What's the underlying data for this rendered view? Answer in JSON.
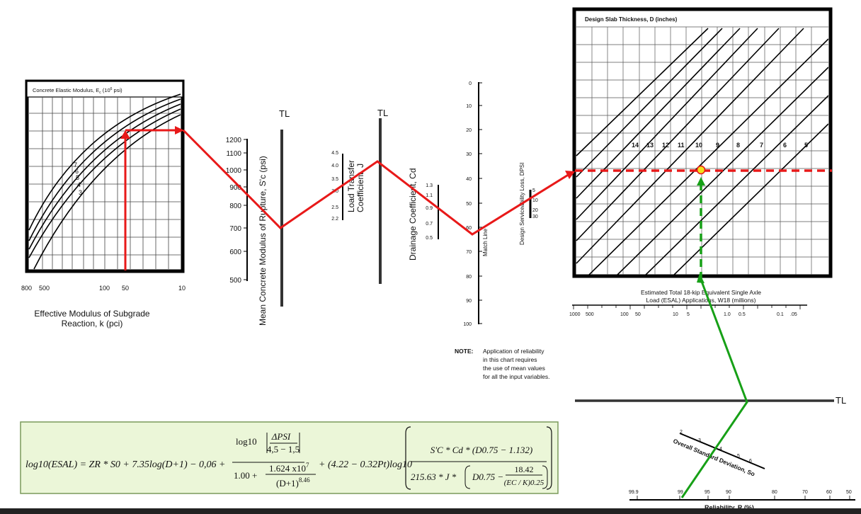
{
  "left_chart": {
    "title": "Concrete Elastic Modulus, E",
    "title_sub": "c",
    "title_paren": " (10",
    "title_sup": "6",
    "title_unit": " psi)",
    "curve_labels": [
      "7",
      "6",
      "5",
      "4",
      "3"
    ],
    "x_ticks": [
      "800",
      "500",
      "100",
      "50",
      "10"
    ],
    "x_label_line1": "Effective Modulus of Subgrade",
    "x_label_line2": "Reaction, k (pci)"
  },
  "rupture_scale": {
    "ticks": [
      "1200",
      "1100",
      "1000",
      "900",
      "800",
      "700",
      "600",
      "500"
    ],
    "label": "Mean Concrete Modulus of Rupture, S'c (psi)"
  },
  "tl_labels": [
    "TL",
    "TL",
    "TL"
  ],
  "load_transfer": {
    "ticks": [
      "4.5",
      "4.0",
      "3.5",
      "3.0",
      "2.5",
      "2.2"
    ],
    "label_line1": "Load Transfer",
    "label_line2": "Coefficient, J"
  },
  "drainage": {
    "ticks": [
      "1.3",
      "1.1",
      "0.9",
      "0.7",
      "0.5"
    ],
    "label": "Drainage Coefficient, Cd"
  },
  "match_line": {
    "ticks": [
      "0",
      "10",
      "20",
      "30",
      "40",
      "50",
      "60",
      "70",
      "80",
      "90",
      "100"
    ],
    "label": "Match Line"
  },
  "serviceability": {
    "ticks": [
      "5",
      "10",
      "20",
      "30"
    ],
    "label": "Design Serviceability Loss, DPSI"
  },
  "note": {
    "head": "NOTE:",
    "lines": [
      "Application of reliability",
      "in this chart requires",
      "the use of mean values",
      "for all the input variables."
    ]
  },
  "right_chart": {
    "title": "Design Slab Thickness, D (inches)",
    "thickness_labels": [
      "14",
      "13",
      "12",
      "11",
      "10",
      "9",
      "8",
      "7",
      "6",
      "5"
    ],
    "x_label_line1": "Estimated Total 18-kip Equivalent Single Axle",
    "x_label_line2": "Load (ESAL) Applications, W18 (millions)",
    "x_ticks": [
      "1000",
      "500",
      "100",
      "50",
      "10",
      "5",
      "1.0",
      "0.5",
      "0.1",
      ".05"
    ]
  },
  "std_dev": {
    "label": "Overall Standard Deviation, So",
    "ticks": [
      "2",
      "3",
      "4",
      "5",
      "6"
    ]
  },
  "reliability": {
    "ticks": [
      "99.9",
      "99",
      "95",
      "90",
      "80",
      "70",
      "60",
      "50"
    ],
    "label": "Reliability, R (%)"
  },
  "formula": {
    "lhs": "log10(ESAL) = ZR * S0 + 7.35log(D+1) − 0,06 +",
    "dpsi_num": "ΔPSI",
    "dpsi_den": "4,5 − 1,5",
    "log10": "log10",
    "den_left": "1.00 +",
    "den_num": "1.624 x10",
    "den_num_exp": "7",
    "den_den": "(D+1)",
    "den_den_exp": "8.46",
    "mid": "+ (4.22 − 0.32Pt)log10",
    "big_num": "S'C * Cd * (D0.75 − 1.132)",
    "big_den_a": "215.63 * J *",
    "big_den_b": "D0.75 −",
    "big_den_c_num": "18.42",
    "big_den_c_den": "(EC / K)0.25"
  },
  "colors": {
    "red": "#e81919",
    "green": "#17a017",
    "formula_bg": "#ebf6d8",
    "formula_border": "#7a9a5a",
    "point_fill": "#f5e11c"
  }
}
